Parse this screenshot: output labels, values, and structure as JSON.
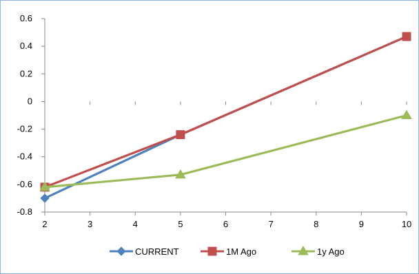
{
  "chart_data": {
    "type": "line",
    "x": [
      2,
      3,
      4,
      5,
      6,
      7,
      8,
      9,
      10
    ],
    "x_tick_labels": [
      "2",
      "3",
      "4",
      "5",
      "6",
      "7",
      "8",
      "9",
      "10"
    ],
    "y_tick_labels": [
      "0.6",
      "0.4",
      "0.2",
      "0",
      "-0.2",
      "-0.4",
      "-0.6",
      "-0.8"
    ],
    "xlim": [
      2,
      10
    ],
    "ylim": [
      -0.8,
      0.6
    ],
    "y_ticks": [
      0.6,
      0.4,
      0.2,
      0,
      -0.2,
      -0.4,
      -0.6,
      -0.8
    ],
    "grid": false,
    "legend_position": "bottom",
    "series": [
      {
        "name": "CURRENT",
        "color": "#4f81bd",
        "marker": "diamond",
        "points": [
          [
            2,
            -0.7
          ],
          [
            5,
            -0.24
          ],
          [
            10,
            0.47
          ]
        ]
      },
      {
        "name": "1M Ago",
        "color": "#c0504d",
        "marker": "square",
        "points": [
          [
            2,
            -0.62
          ],
          [
            5,
            -0.24
          ],
          [
            10,
            0.47
          ]
        ]
      },
      {
        "name": "1y Ago",
        "color": "#9bbb59",
        "marker": "triangle",
        "points": [
          [
            2,
            -0.62
          ],
          [
            5,
            -0.53
          ],
          [
            10,
            -0.1
          ]
        ]
      }
    ]
  }
}
